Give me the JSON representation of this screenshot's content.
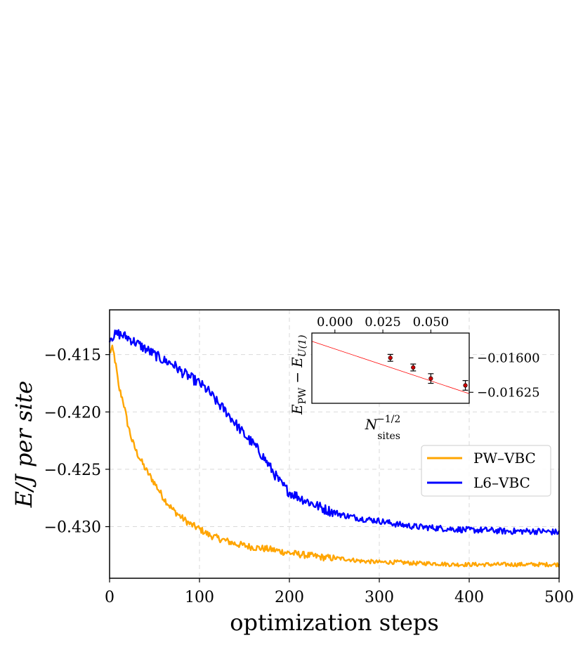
{
  "chart_data": [
    {
      "type": "line",
      "title": "",
      "xlabel": "optimization steps",
      "ylabel": "E/J per site",
      "xlim": [
        0,
        500
      ],
      "ylim": [
        -0.4345,
        -0.4111
      ],
      "xticks": [
        0,
        100,
        200,
        300,
        400,
        500
      ],
      "xtick_labels": [
        "0",
        "100",
        "200",
        "300",
        "400",
        "500"
      ],
      "yticks": [
        -0.415,
        -0.42,
        -0.425,
        -0.43
      ],
      "ytick_labels": [
        "−0.415",
        "−0.420",
        "−0.425",
        "−0.430"
      ],
      "grid": true,
      "legend_location": "center-right",
      "series": [
        {
          "name": "PW–VBC",
          "color": "#FFA500",
          "noise": 0.0003,
          "x": [
            0,
            3,
            5,
            8,
            10,
            15,
            20,
            25,
            30,
            40,
            50,
            60,
            70,
            80,
            90,
            100,
            110,
            120,
            140,
            160,
            180,
            200,
            220,
            240,
            260,
            280,
            300,
            320,
            340,
            360,
            380,
            400,
            420,
            440,
            460,
            480,
            500
          ],
          "y": [
            -0.4148,
            -0.4145,
            -0.415,
            -0.4165,
            -0.4178,
            -0.419,
            -0.421,
            -0.4225,
            -0.4235,
            -0.425,
            -0.4262,
            -0.4275,
            -0.4285,
            -0.4292,
            -0.4298,
            -0.4302,
            -0.4307,
            -0.431,
            -0.4315,
            -0.4318,
            -0.432,
            -0.4323,
            -0.4325,
            -0.4327,
            -0.4328,
            -0.433,
            -0.4331,
            -0.4331,
            -0.4332,
            -0.4332,
            -0.4333,
            -0.4333,
            -0.4333,
            -0.4333,
            -0.4333,
            -0.4333,
            -0.4333
          ]
        },
        {
          "name": "L6–VBC",
          "color": "#0000FF",
          "noise": 0.00045,
          "x": [
            0,
            10,
            20,
            30,
            40,
            50,
            60,
            70,
            80,
            90,
            100,
            110,
            120,
            130,
            140,
            150,
            160,
            170,
            180,
            190,
            200,
            220,
            240,
            260,
            280,
            300,
            320,
            340,
            360,
            380,
            400,
            420,
            440,
            460,
            480,
            500
          ],
          "y": [
            -0.4135,
            -0.4132,
            -0.4135,
            -0.414,
            -0.4145,
            -0.415,
            -0.4155,
            -0.4158,
            -0.4165,
            -0.417,
            -0.4175,
            -0.4182,
            -0.4192,
            -0.42,
            -0.421,
            -0.422,
            -0.4228,
            -0.4238,
            -0.425,
            -0.4262,
            -0.427,
            -0.4278,
            -0.4285,
            -0.429,
            -0.4293,
            -0.4295,
            -0.4298,
            -0.43,
            -0.4301,
            -0.4302,
            -0.4303,
            -0.4303,
            -0.4304,
            -0.4304,
            -0.4304,
            -0.4305
          ]
        }
      ]
    },
    {
      "type": "scatter",
      "title": "",
      "xlabel": "N_sites^{-1/2}",
      "xlabel_main": "N",
      "xlabel_sup": "−1/2",
      "xlabel_sub": "sites",
      "ylabel": "E_PW − E_U(1)",
      "ylabel_parts": {
        "e1": "E",
        "sub1": "PW",
        "minus": "−",
        "e2": "E",
        "sub2": "U(1)"
      },
      "xlim": [
        -0.012,
        0.07
      ],
      "ylim": [
        -0.01633,
        -0.01582
      ],
      "xticks": [
        0.0,
        0.025,
        0.05
      ],
      "xtick_labels": [
        "0.000",
        "0.025",
        "0.050"
      ],
      "yticks": [
        -0.016,
        -0.01625
      ],
      "ytick_labels": [
        "−0.01600",
        "−0.01625"
      ],
      "points": {
        "x": [
          0.0289,
          0.0408,
          0.05,
          0.068
        ],
        "y": [
          -0.016,
          -0.01607,
          -0.01615,
          -0.0162
        ],
        "yerr": [
          2.5e-05,
          2.5e-05,
          3.5e-05,
          3.5e-05
        ],
        "color": "#CC0000"
      },
      "fit": {
        "x": [
          -0.012,
          0.07
        ],
        "y": [
          -0.01588,
          -0.01626
        ],
        "color": "#FF0000"
      }
    }
  ]
}
